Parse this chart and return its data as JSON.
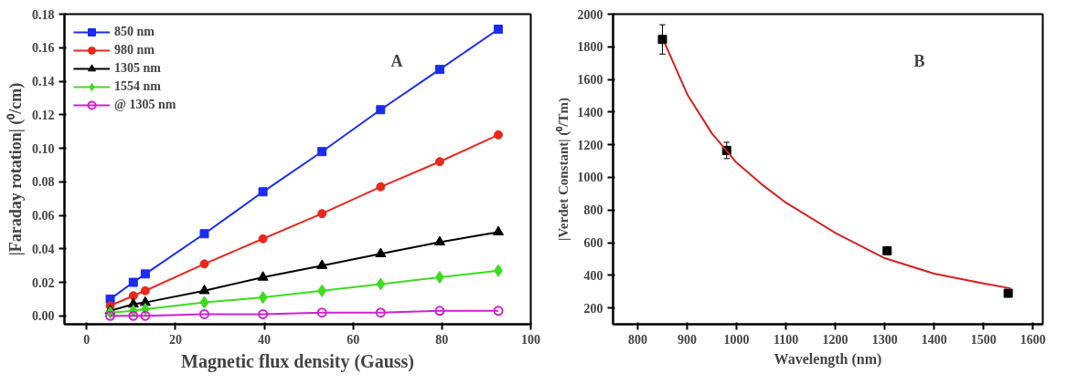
{
  "chart_data": [
    {
      "type": "line",
      "xlabel": "Magnetic flux density (Gauss)",
      "ylabel": "|Faraday rotation| (⁰/cm)",
      "annotations": [
        "A"
      ],
      "x": [
        5.3,
        10.5,
        13.2,
        26.5,
        39.7,
        53,
        66.2,
        79.5,
        92.7
      ],
      "xlim": [
        -5,
        100
      ],
      "ylim": [
        -0.005,
        0.18
      ],
      "xticks": [
        0,
        20,
        40,
        60,
        80,
        100
      ],
      "yticks": [
        {
          "value": 0,
          "label": "0.00"
        },
        {
          "value": 0.02,
          "label": "0.02"
        },
        {
          "value": 0.04,
          "label": "0.04"
        },
        {
          "value": 0.06,
          "label": "0.06"
        },
        {
          "value": 0.08,
          "label": "0.08"
        },
        {
          "value": 0.1,
          "label": "0.10"
        },
        {
          "value": 0.12,
          "label": "0.12"
        },
        {
          "value": 0.14,
          "label": "0.14"
        },
        {
          "value": 0.16,
          "label": "0.16"
        },
        {
          "value": 0.18,
          "label": "0.18"
        }
      ],
      "grid": false,
      "legend": "top left",
      "line_style": "solid",
      "series": [
        {
          "name": "850 nm",
          "color": "#1a2cf0",
          "marker": "square",
          "values": [
            0.01,
            0.02,
            0.025,
            0.049,
            0.074,
            0.098,
            0.123,
            0.147,
            0.171
          ]
        },
        {
          "name": "980 nm",
          "color": "#e8281e",
          "marker": "circle",
          "values": [
            0.006,
            0.012,
            0.015,
            0.031,
            0.046,
            0.061,
            0.077,
            0.092,
            0.108
          ]
        },
        {
          "name": "1305 nm",
          "color": "#000000",
          "marker": "triangle",
          "values": [
            0.003,
            0.007,
            0.008,
            0.015,
            0.023,
            0.03,
            0.037,
            0.044,
            0.05
          ]
        },
        {
          "name": "1554 nm",
          "color": "#3cdc1e",
          "marker": "diamond",
          "values": [
            0.002,
            0.003,
            0.004,
            0.008,
            0.011,
            0.015,
            0.019,
            0.023,
            0.027
          ]
        },
        {
          "name": "@ 1305 nm",
          "color": "#d020d0",
          "marker": "circle_open",
          "values": [
            0.0,
            0.0,
            0.0,
            0.001,
            0.001,
            0.002,
            0.002,
            0.003,
            0.003
          ]
        }
      ]
    },
    {
      "type": "scatter",
      "xlabel": "Wavelength (nm)",
      "ylabel": "|Verdet Constant| (⁰/Tm)",
      "annotations": [
        "B"
      ],
      "xlim": [
        750,
        1620
      ],
      "ylim": [
        100,
        2000
      ],
      "xticks": [
        800,
        900,
        1000,
        1100,
        1200,
        1300,
        1400,
        1500,
        1600
      ],
      "yticks": [
        200,
        400,
        600,
        800,
        1000,
        1200,
        1400,
        1600,
        1800,
        2000
      ],
      "grid": false,
      "legend": false,
      "series": [
        {
          "type": "scatter",
          "color": "#000000",
          "marker": "square",
          "x": [
            850,
            980,
            1305,
            1550
          ],
          "values": [
            1845,
            1165,
            550,
            290
          ],
          "errors": [
            90,
            50,
            null,
            null
          ]
        },
        {
          "type": "line",
          "color": "#d62020",
          "marker": "none",
          "x": [
            855,
            900,
            950,
            1000,
            1050,
            1100,
            1200,
            1300,
            1400,
            1500,
            1555
          ],
          "values": [
            1820,
            1510,
            1270,
            1090,
            960,
            845,
            660,
            505,
            410,
            350,
            320
          ]
        }
      ]
    }
  ]
}
